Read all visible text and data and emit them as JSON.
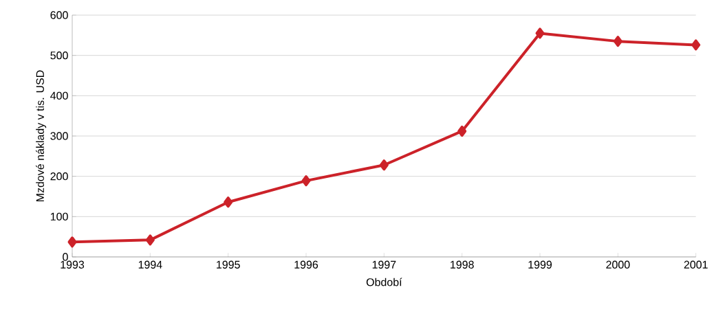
{
  "chart_data": {
    "type": "line",
    "xlabel": "Období",
    "ylabel": "Mzdové náklady v tis. USD",
    "x": [
      1993,
      1994,
      1995,
      1996,
      1997,
      1998,
      1999,
      2000,
      2001
    ],
    "series": [
      {
        "color": "#cc2229",
        "values": [
          37,
          42,
          136,
          189,
          228,
          312,
          555,
          535,
          526
        ]
      }
    ],
    "xlim": [
      1993,
      2001
    ],
    "xticks": [
      1993,
      1994,
      1995,
      1996,
      1997,
      1998,
      1999,
      2000,
      2001
    ],
    "ylim": [
      0,
      600
    ],
    "yticks": [
      0,
      100,
      200,
      300,
      400,
      500,
      600
    ],
    "grid": "y",
    "marker": "diamond",
    "line_style": "solid"
  }
}
